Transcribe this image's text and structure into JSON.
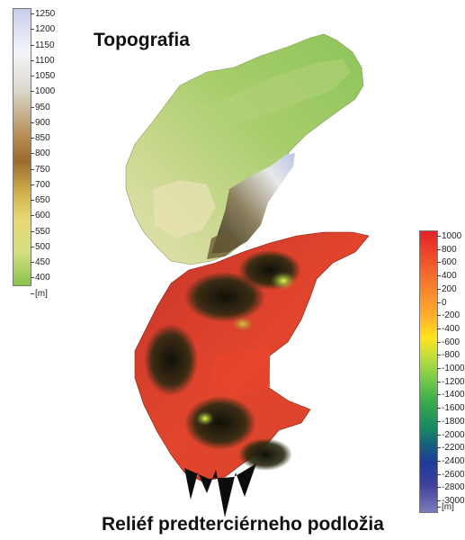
{
  "titles": {
    "top": "Topografia",
    "bottom": "Reliéf predterciérneho podložia"
  },
  "legend_topo": {
    "ticks": [
      "1250",
      "1200",
      "1150",
      "1100",
      "1050",
      "1000",
      "950",
      "900",
      "850",
      "800",
      "750",
      "700",
      "650",
      "600",
      "550",
      "500",
      "450",
      "400"
    ],
    "unit": "[m]",
    "range": [
      400,
      1250
    ],
    "colors": [
      "#bcc6e6",
      "#ffffff",
      "#c2a25f",
      "#8a5a22",
      "#c79a3c",
      "#e8d06a",
      "#e6e68a",
      "#86c44a"
    ]
  },
  "legend_relief": {
    "ticks": [
      "1000",
      "800",
      "600",
      "400",
      "200",
      "0",
      "-200",
      "-400",
      "-600",
      "-800",
      "-1000",
      "-1200",
      "-1400",
      "-1600",
      "-1800",
      "-2000",
      "-2200",
      "-2400",
      "-2600",
      "-2800",
      "-3000"
    ],
    "unit": "[m]",
    "range": [
      -3000,
      1000
    ],
    "colors": [
      "#e0282a",
      "#ff7a2a",
      "#ffd21a",
      "#9ad64a",
      "#2ea84a",
      "#177a7a",
      "#2a3aa0",
      "#7a78bc"
    ]
  }
}
